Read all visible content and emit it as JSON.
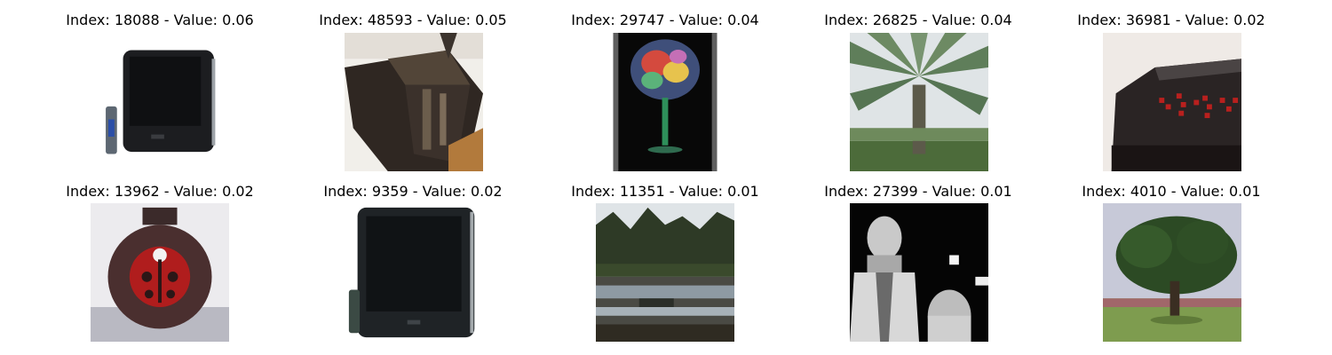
{
  "grid": {
    "items": [
      {
        "title": "Index: 18088 - Value: 0.06",
        "index": 18088,
        "value": 0.06,
        "image": "television-with-remote"
      },
      {
        "title": "Index: 48593 - Value: 0.05",
        "index": 48593,
        "value": 0.05,
        "image": "crt-tv-angled"
      },
      {
        "title": "Index: 29747 - Value: 0.04",
        "index": 29747,
        "value": 0.04,
        "image": "glass-on-black"
      },
      {
        "title": "Index: 26825 - Value: 0.04",
        "index": 26825,
        "value": 0.04,
        "image": "palm-tree"
      },
      {
        "title": "Index: 36981 - Value: 0.02",
        "index": 36981,
        "value": 0.02,
        "image": "alarm-clock"
      },
      {
        "title": "Index: 13962 - Value: 0.02",
        "index": 13962,
        "value": 0.02,
        "image": "ladybug-jar"
      },
      {
        "title": "Index: 9359 - Value: 0.02",
        "index": 9359,
        "value": 0.02,
        "image": "television-with-remote"
      },
      {
        "title": "Index: 11351 - Value: 0.01",
        "index": 11351,
        "value": 0.01,
        "image": "forest-lake"
      },
      {
        "title": "Index: 27399 - Value: 0.01",
        "index": 27399,
        "value": 0.01,
        "image": "grayscale-man"
      },
      {
        "title": "Index: 4010 - Value: 0.01",
        "index": 4010,
        "value": 0.01,
        "image": "tree-on-grass"
      }
    ]
  }
}
